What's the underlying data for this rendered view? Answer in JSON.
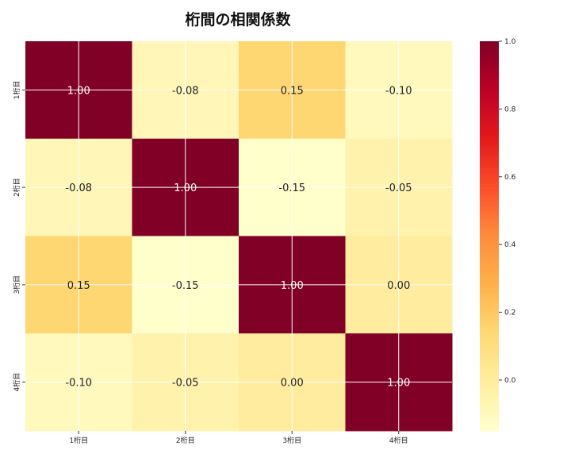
{
  "chart_data": {
    "type": "heatmap",
    "title": "桁間の相関係数",
    "categories": [
      "1桁目",
      "2桁目",
      "3桁目",
      "4桁目"
    ],
    "rows": [
      "1桁目",
      "2桁目",
      "3桁目",
      "4桁目"
    ],
    "values": [
      [
        1.0,
        -0.08,
        0.15,
        -0.1
      ],
      [
        -0.08,
        1.0,
        -0.15,
        -0.05
      ],
      [
        0.15,
        -0.15,
        1.0,
        0.0
      ],
      [
        -0.1,
        -0.05,
        0.0,
        1.0
      ]
    ],
    "value_format": "0.00",
    "colormap": "YlOrRd",
    "colormap_stops": [
      "#ffffcc",
      "#ffeda0",
      "#fed976",
      "#feb24c",
      "#fd8d3c",
      "#fc4e2a",
      "#e31a1c",
      "#bd0026",
      "#800026"
    ],
    "vmin": -0.15,
    "vmax": 1.0,
    "colorbar_ticks": [
      "0.0",
      "0.2",
      "0.4",
      "0.6",
      "0.8",
      "1.0"
    ],
    "grid": true,
    "legend": "right colorbar"
  }
}
